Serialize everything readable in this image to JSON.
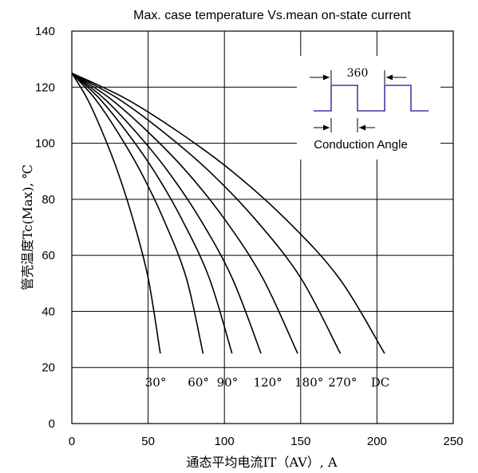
{
  "chart_data": {
    "type": "line",
    "title": "Max. case temperature Vs.mean on-state current",
    "xlabel": "通态平均电流IT（AV）, A",
    "ylabel": "管壳温度Tc(Max), ℃",
    "xlim": [
      0,
      250
    ],
    "ylim": [
      0,
      140
    ],
    "xticks": [
      0,
      50,
      100,
      150,
      200,
      250
    ],
    "yticks": [
      0,
      20,
      40,
      60,
      80,
      100,
      120,
      140
    ],
    "grid": true,
    "series": [
      {
        "name": "30°",
        "x": [
          0,
          10,
          20,
          30,
          40,
          50,
          58
        ],
        "y": [
          125,
          116,
          104,
          90,
          73,
          52,
          25
        ]
      },
      {
        "name": "60°",
        "x": [
          0,
          15,
          30,
          45,
          60,
          75,
          86
        ],
        "y": [
          125,
          116,
          104,
          90,
          73,
          52,
          25
        ]
      },
      {
        "name": "90°",
        "x": [
          0,
          18,
          36,
          54,
          72,
          90,
          105
        ],
        "y": [
          125,
          116,
          104,
          90,
          73,
          52,
          25
        ]
      },
      {
        "name": "120°",
        "x": [
          0,
          21,
          42,
          63,
          84,
          105,
          124
        ],
        "y": [
          125,
          116,
          104,
          90,
          73,
          52,
          25
        ]
      },
      {
        "name": "180°",
        "x": [
          0,
          25,
          50,
          75,
          100,
          125,
          148
        ],
        "y": [
          125,
          116,
          104,
          90,
          73,
          52,
          25
        ]
      },
      {
        "name": "270°",
        "x": [
          0,
          30,
          60,
          90,
          120,
          150,
          176
        ],
        "y": [
          125,
          116,
          104,
          90,
          73,
          52,
          25
        ]
      },
      {
        "name": "DC",
        "x": [
          0,
          35,
          70,
          105,
          140,
          175,
          205
        ],
        "y": [
          125,
          116,
          104,
          90,
          73,
          52,
          25
        ]
      }
    ],
    "curve_labels": [
      {
        "text": "30°",
        "x": 48,
        "y": 15
      },
      {
        "text": "60°",
        "x": 76,
        "y": 15
      },
      {
        "text": "90°",
        "x": 95,
        "y": 15
      },
      {
        "text": "120°",
        "x": 119,
        "y": 15
      },
      {
        "text": "180°",
        "x": 146,
        "y": 15
      },
      {
        "text": "270°",
        "x": 168,
        "y": 15
      },
      {
        "text": "DC",
        "x": 196,
        "y": 15
      }
    ],
    "inset": {
      "period_label": "360",
      "conduction_label": "Conduction  Angle"
    },
    "colors": {
      "lines": "#000000",
      "background": "#ffffff"
    }
  }
}
